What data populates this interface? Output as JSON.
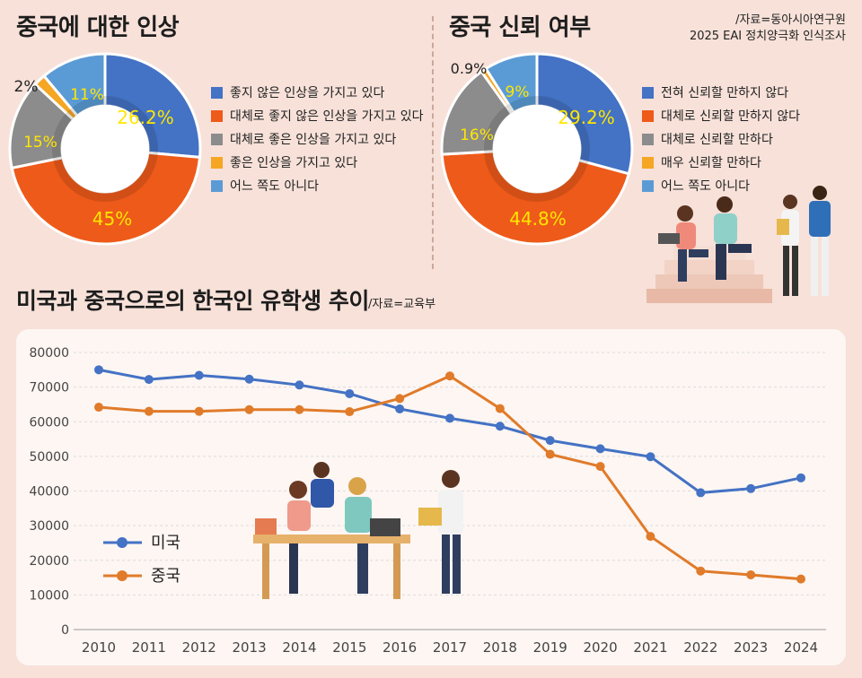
{
  "left_chart": {
    "title": "중국에 대한 인상",
    "chart_data": {
      "type": "pie",
      "categories": [
        "좋지 않은 인상을 가지고 있다",
        "대체로 좋지 않은 인상을 가지고 있다",
        "대체로 좋은 인상을 가지고 있다",
        "좋은 인상을 가지고 있다",
        "어느 쪽도 아니다"
      ],
      "values": [
        26.2,
        45,
        15,
        2,
        11
      ],
      "labels": [
        "26.2%",
        "45%",
        "15%",
        "2%",
        "11%"
      ],
      "colors": [
        "#4472c4",
        "#ee5a1a",
        "#8c8c8c",
        "#f5a623",
        "#5b9bd5"
      ]
    }
  },
  "right_chart": {
    "title": "중국 신뢰 여부",
    "chart_data": {
      "type": "pie",
      "categories": [
        "전혀 신뢰할 만하지 않다",
        "대체로 신뢰할 만하지 않다",
        "대체로 신뢰할 만하다",
        "매우 신뢰할 만하다",
        "어느 쪽도 아니다"
      ],
      "values": [
        29.2,
        44.8,
        16,
        0.9,
        9
      ],
      "labels": [
        "29.2%",
        "44.8%",
        "16%",
        "0.9%",
        "9%"
      ],
      "colors": [
        "#4472c4",
        "#ee5a1a",
        "#8c8c8c",
        "#f5a623",
        "#5b9bd5"
      ]
    }
  },
  "source_top": {
    "line1": "/자료=동아시아연구원",
    "line2": "2025 EAI 정치양극화 인식조사"
  },
  "line_chart": {
    "title": "미국과 중국으로의 한국인 유학생 추이",
    "source": "/자료=교육부",
    "chart_data": {
      "type": "line",
      "x": [
        2010,
        2011,
        2012,
        2013,
        2014,
        2015,
        2016,
        2017,
        2018,
        2019,
        2020,
        2021,
        2022,
        2023,
        2024
      ],
      "series": [
        {
          "name": "미국",
          "color": "#4472c4",
          "values": [
            75000,
            72200,
            73400,
            72300,
            70600,
            68100,
            63700,
            61000,
            58700,
            54600,
            52200,
            49900,
            39500,
            40700,
            43800
          ]
        },
        {
          "name": "중국",
          "color": "#e07b2a",
          "values": [
            64200,
            63000,
            63000,
            63500,
            63500,
            62900,
            66700,
            73200,
            63800,
            50600,
            47100,
            26900,
            16900,
            15800,
            14600
          ]
        }
      ],
      "ylim": [
        0,
        80000
      ],
      "yticks": [
        0,
        10000,
        20000,
        30000,
        40000,
        50000,
        60000,
        70000,
        80000
      ],
      "grid": true,
      "legend": "bottom-left"
    }
  }
}
